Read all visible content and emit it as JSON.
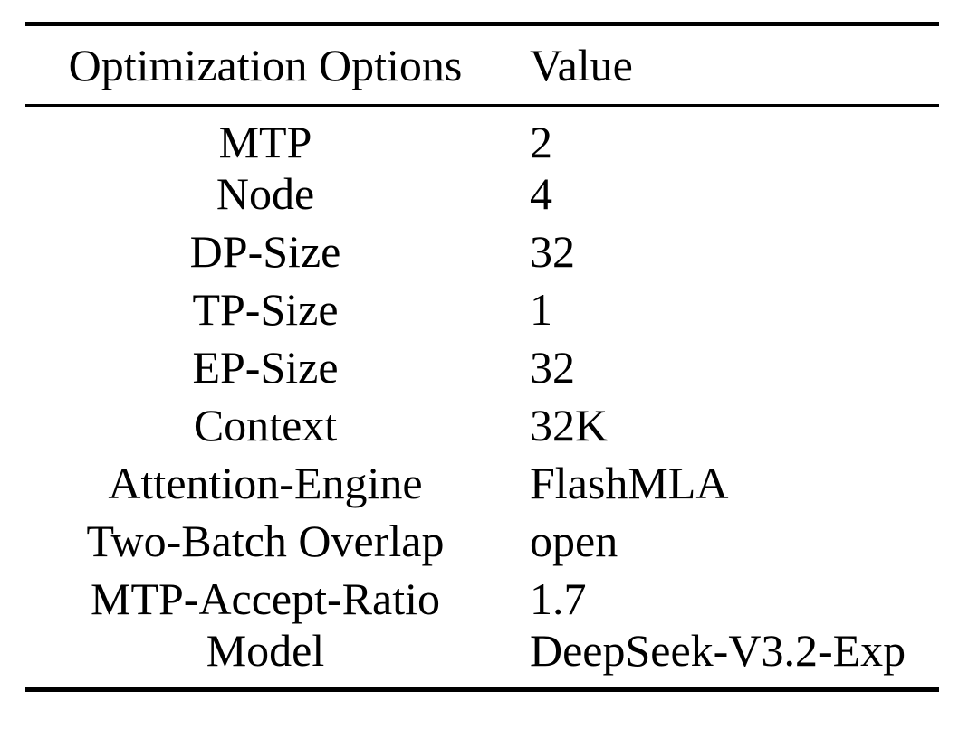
{
  "table": {
    "columns": [
      "Optimization Options",
      "Value"
    ],
    "rows": [
      {
        "option": "MTP",
        "value": "2"
      },
      {
        "option": "Node",
        "value": "4"
      },
      {
        "option": "DP-Size",
        "value": "32"
      },
      {
        "option": "TP-Size",
        "value": "1"
      },
      {
        "option": "EP-Size",
        "value": "32"
      },
      {
        "option": "Context",
        "value": "32K"
      },
      {
        "option": "Attention-Engine",
        "value": "FlashMLA"
      },
      {
        "option": "Two-Batch Overlap",
        "value": "open"
      },
      {
        "option": "MTP-Accept-Ratio",
        "value": "1.7"
      },
      {
        "option": "Model",
        "value": "DeepSeek-V3.2-Exp"
      }
    ],
    "colors": {
      "text": "#000000",
      "background": "#ffffff",
      "rule": "#000000"
    }
  }
}
